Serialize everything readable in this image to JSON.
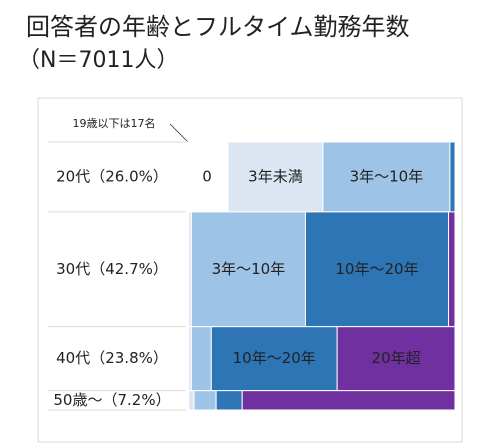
{
  "chart_data": {
    "type": "mekko",
    "title": "回答者の年齢とフルタイム勤務年数",
    "subtitle": "（N＝7011人）",
    "annotation": "19歳以下は17名",
    "categories": [
      "20代（26.0%）",
      "30代（42.7%）",
      "40代（23.8%）",
      "50歳～（7.2%）"
    ],
    "shares": [
      26.0,
      42.7,
      23.8,
      7.2
    ],
    "series": [
      {
        "name": "0",
        "color": "#ffffff",
        "values": [
          15.6,
          1,
          1,
          1
        ]
      },
      {
        "name": "3年未満",
        "color": "#dce6f2",
        "values": [
          35.3,
          1,
          1,
          2
        ]
      },
      {
        "name": "3年～10年",
        "color": "#9dc3e6",
        "values": [
          47.2,
          42.4,
          7.4,
          8.2
        ]
      },
      {
        "name": "10年～20年",
        "color": "#2e75b6",
        "values": [
          1.9,
          53.2,
          46.8,
          9.7
        ]
      },
      {
        "name": "20年超",
        "color": "#7030a0",
        "values": [
          0,
          2.4,
          43.8,
          79.1
        ]
      }
    ]
  }
}
